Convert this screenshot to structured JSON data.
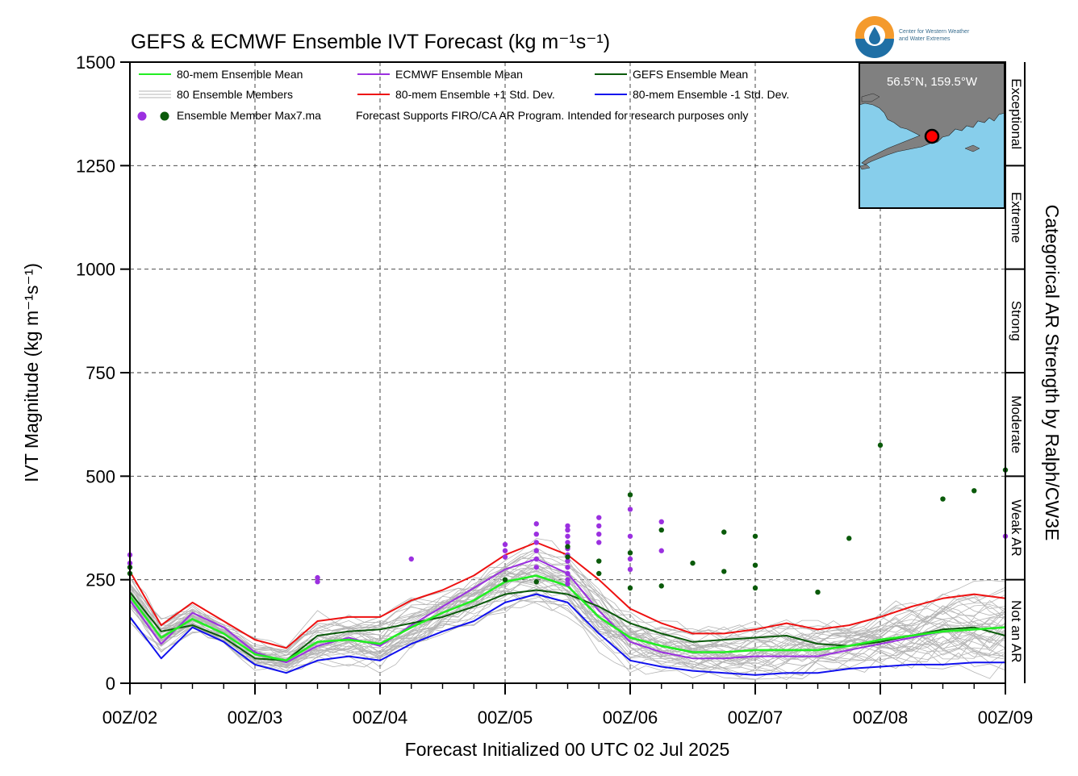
{
  "chart_data": {
    "type": "line",
    "title": "GEFS & ECMWF Ensemble IVT Forecast (kg m⁻¹s⁻¹)",
    "xlabel": "Forecast Initialized 00 UTC 02 Jul 2025",
    "ylabel": "IVT Magnitude (kg m⁻¹s⁻¹)",
    "right_label": "Categorical AR Strength by Ralph/CW3E",
    "xlim": [
      0,
      168
    ],
    "ylim": [
      0,
      1500
    ],
    "x_tick_hours": [
      0,
      24,
      48,
      72,
      96,
      120,
      144,
      168
    ],
    "x_tick_labels": [
      "00Z/02",
      "00Z/03",
      "00Z/04",
      "00Z/05",
      "00Z/06",
      "00Z/07",
      "00Z/08",
      "00Z/09"
    ],
    "y_ticks": [
      0,
      250,
      500,
      750,
      1000,
      1250,
      1500
    ],
    "y_tick_labels": [
      "0",
      "250",
      "500",
      "750",
      "1000",
      "1250",
      "1500"
    ],
    "grid": true,
    "categories_ar": [
      {
        "label": "Not an AR",
        "from": 0,
        "to": 250
      },
      {
        "label": "Weak AR",
        "from": 250,
        "to": 500
      },
      {
        "label": "Moderate",
        "from": 500,
        "to": 750
      },
      {
        "label": "Strong",
        "from": 750,
        "to": 1000
      },
      {
        "label": "Extreme",
        "from": 1000,
        "to": 1250
      },
      {
        "label": "Exceptional",
        "from": 1250,
        "to": 1500
      }
    ],
    "legend": {
      "placement": "top-left",
      "entries": [
        {
          "label": "80-mem Ensemble Mean",
          "color": "#22ee22",
          "kind": "line"
        },
        {
          "label": "ECMWF Ensemble Mean",
          "color": "#9b30e0",
          "kind": "line"
        },
        {
          "label": "GEFS Ensemble Mean",
          "color": "#0a5a0a",
          "kind": "line"
        },
        {
          "label": "80 Ensemble Members",
          "color": "#b4b4b4",
          "kind": "members"
        },
        {
          "label": "80-mem Ensemble +1 Std. Dev.",
          "color": "#ee1111",
          "kind": "line"
        },
        {
          "label": "80-mem Ensemble -1 Std. Dev.",
          "color": "#1111ee",
          "kind": "line"
        },
        {
          "label": "Ensemble Member Max7.ma",
          "color": "#9b30e0",
          "kind": "dots"
        }
      ],
      "note": "Forecast Supports FIRO/CA AR Program. Intended for research purposes only"
    },
    "x": [
      0,
      6,
      12,
      18,
      24,
      30,
      36,
      42,
      48,
      54,
      60,
      66,
      72,
      78,
      84,
      90,
      96,
      102,
      108,
      114,
      120,
      126,
      132,
      138,
      144,
      150,
      156,
      162,
      168
    ],
    "series": [
      {
        "name": "80-mem Ensemble Mean",
        "color": "#22ee22",
        "values": [
          210,
          110,
          155,
          120,
          70,
          55,
          100,
          105,
          95,
          135,
          170,
          200,
          245,
          260,
          235,
          160,
          110,
          90,
          75,
          75,
          80,
          80,
          80,
          90,
          105,
          115,
          125,
          130,
          135
        ]
      },
      {
        "name": "ECMWF Ensemble Mean",
        "color": "#9b30e0",
        "values": [
          200,
          95,
          170,
          135,
          75,
          50,
          90,
          110,
          90,
          140,
          185,
          230,
          275,
          300,
          265,
          175,
          100,
          75,
          60,
          60,
          65,
          65,
          65,
          80,
          95,
          110,
          125,
          130,
          135
        ]
      },
      {
        "name": "GEFS Ensemble Mean",
        "color": "#0a5a0a",
        "values": [
          220,
          125,
          140,
          110,
          60,
          55,
          115,
          125,
          130,
          145,
          160,
          185,
          215,
          225,
          215,
          185,
          145,
          120,
          100,
          105,
          110,
          115,
          95,
          90,
          100,
          115,
          130,
          135,
          115
        ]
      },
      {
        "name": "80-mem Ensemble +1 Std. Dev.",
        "color": "#ee1111",
        "values": [
          270,
          140,
          195,
          150,
          105,
          85,
          150,
          160,
          160,
          200,
          225,
          260,
          310,
          340,
          310,
          250,
          180,
          145,
          120,
          120,
          130,
          145,
          130,
          140,
          160,
          185,
          205,
          215,
          205
        ]
      },
      {
        "name": "80-mem Ensemble -1 Std. Dev.",
        "color": "#1111ee",
        "values": [
          160,
          60,
          135,
          100,
          45,
          25,
          55,
          65,
          55,
          95,
          125,
          150,
          195,
          215,
          195,
          120,
          55,
          40,
          30,
          25,
          20,
          25,
          25,
          35,
          40,
          45,
          45,
          50,
          50
        ]
      }
    ],
    "ecmwf_max7_points": [
      [
        0,
        310
      ],
      [
        0,
        290
      ],
      [
        36,
        255
      ],
      [
        36,
        245
      ],
      [
        54,
        300
      ],
      [
        72,
        335
      ],
      [
        72,
        320
      ],
      [
        72,
        305
      ],
      [
        78,
        385
      ],
      [
        78,
        360
      ],
      [
        78,
        340
      ],
      [
        78,
        320
      ],
      [
        78,
        300
      ],
      [
        78,
        280
      ],
      [
        84,
        380
      ],
      [
        84,
        370
      ],
      [
        84,
        355
      ],
      [
        84,
        340
      ],
      [
        84,
        325
      ],
      [
        84,
        310
      ],
      [
        84,
        295
      ],
      [
        84,
        280
      ],
      [
        84,
        265
      ],
      [
        84,
        250
      ],
      [
        84,
        240
      ],
      [
        90,
        400
      ],
      [
        90,
        380
      ],
      [
        90,
        360
      ],
      [
        90,
        340
      ],
      [
        96,
        420
      ],
      [
        96,
        355
      ],
      [
        96,
        300
      ],
      [
        96,
        275
      ],
      [
        102,
        390
      ],
      [
        102,
        320
      ],
      [
        168,
        355
      ]
    ],
    "gefs_max7_points": [
      [
        0,
        280
      ],
      [
        0,
        265
      ],
      [
        72,
        250
      ],
      [
        78,
        245
      ],
      [
        84,
        330
      ],
      [
        84,
        305
      ],
      [
        90,
        295
      ],
      [
        90,
        265
      ],
      [
        96,
        455
      ],
      [
        96,
        315
      ],
      [
        96,
        230
      ],
      [
        102,
        370
      ],
      [
        102,
        235
      ],
      [
        108,
        290
      ],
      [
        114,
        365
      ],
      [
        114,
        270
      ],
      [
        120,
        355
      ],
      [
        120,
        285
      ],
      [
        120,
        230
      ],
      [
        132,
        220
      ],
      [
        138,
        350
      ],
      [
        144,
        575
      ],
      [
        156,
        445
      ],
      [
        162,
        465
      ],
      [
        168,
        515
      ]
    ],
    "inset_map": {
      "label": "56.5°N, 159.5°W",
      "land_color": "#808080",
      "ocean_color": "#87ceeb",
      "marker_color": "#ff0000"
    },
    "logo": {
      "line1": "Center for Western Weather",
      "line2": "and Water Extremes"
    }
  }
}
